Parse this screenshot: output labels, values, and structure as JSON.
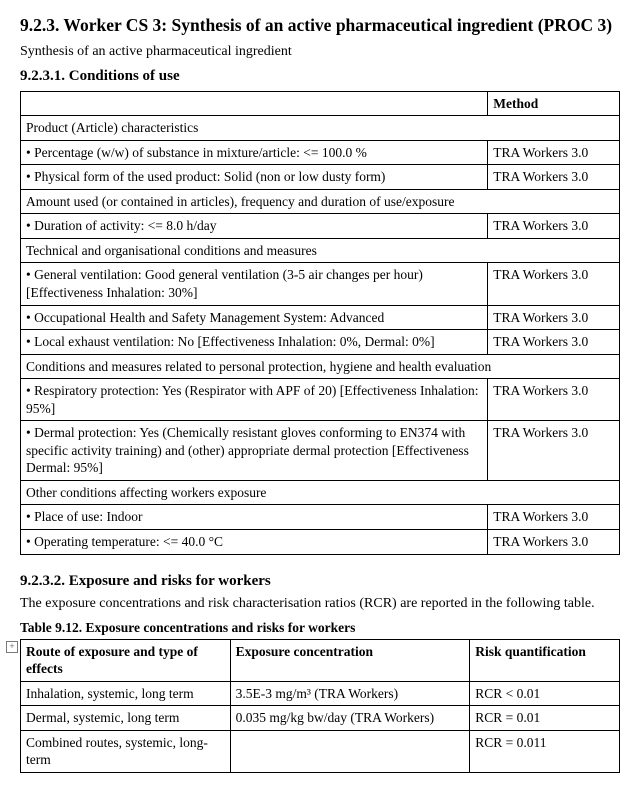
{
  "heading": {
    "title": "9.2.3. Worker  CS 3: Synthesis of an active pharmaceutical ingredient (PROC 3)",
    "subtitle": "Synthesis of an active pharmaceutical ingredient"
  },
  "conditions": {
    "heading": "9.2.3.1. Conditions  of use",
    "method_header": "Method",
    "sections": [
      {
        "label": "Product (Article) characteristics",
        "rows": [
          {
            "text": "• Percentage (w/w) of substance in mixture/article: <= 100.0 %",
            "method": "TRA Workers 3.0"
          },
          {
            "text": "• Physical form of the used product: Solid (non or low dusty form)",
            "method": "TRA Workers 3.0"
          }
        ]
      },
      {
        "label": "Amount used (or contained in articles), frequency and duration of use/exposure",
        "rows": [
          {
            "text": "• Duration of activity: <= 8.0 h/day",
            "method": "TRA Workers 3.0"
          }
        ]
      },
      {
        "label": "Technical and organisational conditions and measures",
        "rows": [
          {
            "text": "• General ventilation: Good general ventilation (3-5 air changes per hour) [Effectiveness Inhalation: 30%]",
            "method": "TRA Workers 3.0"
          },
          {
            "text": "• Occupational Health and Safety Management System: Advanced",
            "method": "TRA Workers 3.0"
          },
          {
            "text": "• Local exhaust ventilation: No [Effectiveness Inhalation: 0%, Dermal: 0%]",
            "method": "TRA Workers 3.0"
          }
        ]
      },
      {
        "label": "Conditions and measures related to personal protection, hygiene and health evaluation",
        "rows": [
          {
            "text": "• Respiratory protection: Yes (Respirator with APF of 20) [Effectiveness Inhalation: 95%]",
            "method": "TRA Workers 3.0"
          },
          {
            "text": "• Dermal protection: Yes (Chemically resistant gloves conforming to EN374 with specific activity training) and (other) appropriate dermal protection [Effectiveness Dermal: 95%]",
            "method": "TRA Workers 3.0"
          }
        ]
      },
      {
        "label": "Other conditions affecting workers exposure",
        "rows": [
          {
            "text": "• Place of use: Indoor",
            "method": "TRA Workers 3.0"
          },
          {
            "text": "• Operating temperature: <= 40.0 °C",
            "method": "TRA Workers 3.0"
          }
        ]
      }
    ]
  },
  "risks": {
    "heading": "9.2.3.2. Exposure  and risks for workers",
    "intro": "The exposure concentrations and risk characterisation ratios (RCR) are reported in the following table.",
    "table_caption": "Table 9.12. Exposure concentrations and risks for workers",
    "headers": {
      "route": "Route of exposure and type of effects",
      "conc": "Exposure concentration",
      "risk": "Risk quantification"
    },
    "rows": [
      {
        "route": "Inhalation, systemic, long term",
        "conc": "3.5E-3 mg/m³ (TRA Workers)",
        "risk": "RCR < 0.01"
      },
      {
        "route": "Dermal, systemic, long term",
        "conc": "0.035 mg/kg bw/day (TRA Workers)",
        "risk": "RCR = 0.01"
      },
      {
        "route": "Combined routes, systemic, long-term",
        "conc": "",
        "risk": "RCR = 0.011"
      }
    ]
  }
}
